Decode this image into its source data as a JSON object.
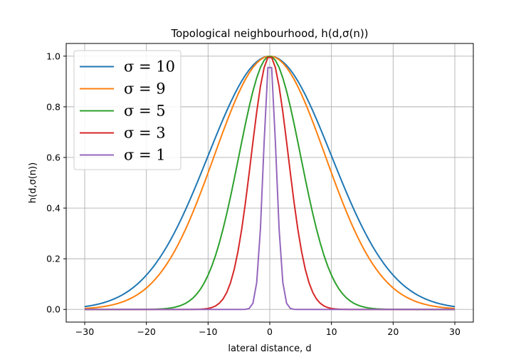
{
  "chart_data": {
    "type": "line",
    "title": "Topological neighbourhood, h(d,σ(n))",
    "xlabel": "lateral distance, d",
    "ylabel": "h(d,σ(n))",
    "xlim": [
      -33,
      33
    ],
    "ylim": [
      -0.05,
      1.05
    ],
    "grid": true,
    "legend_position": "top-left",
    "x_ticks": [
      -30,
      -20,
      -10,
      0,
      10,
      20,
      30
    ],
    "x_tick_labels": [
      "−30",
      "−20",
      "−10",
      "0",
      "10",
      "20",
      "30"
    ],
    "y_ticks": [
      0.0,
      0.2,
      0.4,
      0.6,
      0.8,
      1.0
    ],
    "y_tick_labels": [
      "0.0",
      "0.2",
      "0.4",
      "0.6",
      "0.8",
      "1.0"
    ],
    "x_range": [
      -30,
      30
    ],
    "x_points": 100,
    "function": "exp(-d^2 / (2 * sigma^2))",
    "series": [
      {
        "name": "σ = 10",
        "sigma": 10,
        "color": "#1f77b4"
      },
      {
        "name": "σ = 9",
        "sigma": 9,
        "color": "#ff7f0e"
      },
      {
        "name": "σ = 5",
        "sigma": 5,
        "color": "#2ca02c"
      },
      {
        "name": "σ = 3",
        "sigma": 3,
        "color": "#d62728"
      },
      {
        "name": "σ = 1",
        "sigma": 1,
        "color": "#9467bd"
      }
    ]
  }
}
